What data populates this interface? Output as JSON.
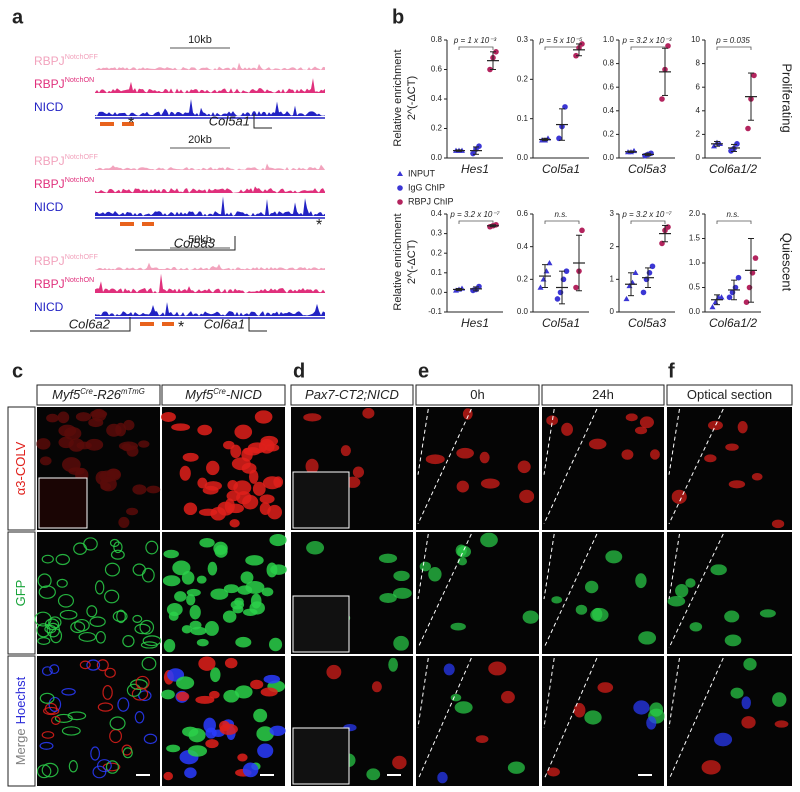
{
  "panel_labels": [
    "a",
    "b",
    "c",
    "d",
    "e",
    "f"
  ],
  "panel_a": [
    {
      "scale": "10kb",
      "tracks": [
        {
          "label": "RBPJ",
          "sup": "NotchOFF"
        },
        {
          "label": "RBPJ",
          "sup": "NotchON"
        },
        {
          "label": "NICD"
        }
      ],
      "genes": [
        "Col5a1"
      ],
      "asterisks": [
        "*"
      ]
    },
    {
      "scale": "20kb",
      "tracks": [
        {
          "label": "RBPJ",
          "sup": "NotchOFF"
        },
        {
          "label": "RBPJ",
          "sup": "NotchON"
        },
        {
          "label": "NICD"
        }
      ],
      "genes": [
        "Col5a3"
      ],
      "asterisks": [
        "*"
      ]
    },
    {
      "scale": "50kb",
      "tracks": [
        {
          "label": "RBPJ",
          "sup": "NotchOFF"
        },
        {
          "label": "RBPJ",
          "sup": "NotchON"
        },
        {
          "label": "NICD"
        }
      ],
      "genes": [
        "Col6a2",
        "Col6a1"
      ],
      "asterisks": [
        "*"
      ]
    }
  ],
  "panel_b_rows": [
    {
      "label": "Proliferating",
      "ylabel": [
        "Relative enrichment",
        "2^(-ΔCT)"
      ]
    },
    {
      "label": "Quiescent",
      "ylabel": [
        "Relative enrichment",
        "2^(-ΔCT)"
      ]
    }
  ],
  "chart_data": [
    {
      "type": "strip",
      "xlabel": "Hes1",
      "annotation": "p = 1 x 10⁻³",
      "ylim": [
        0,
        0.8
      ],
      "yticks": [
        {
          "value": 0,
          "label": "0.0"
        },
        0.2,
        0.4,
        0.6,
        0.8
      ],
      "series": [
        {
          "name": "INPUT",
          "marker": "triangle",
          "color": "#3b36d4",
          "values": [
            0.05,
            0.05,
            0.05
          ],
          "mean": 0.05,
          "sd": 0.005
        },
        {
          "name": "IgG ChIP",
          "marker": "circle",
          "color": "#3b36d4",
          "values": [
            0.03,
            0.06,
            0.08
          ],
          "mean": 0.05,
          "sd": 0.025
        },
        {
          "name": "RBPJ ChIP",
          "marker": "circle",
          "color": "#b3245e",
          "values": [
            0.6,
            0.68,
            0.72
          ],
          "mean": 0.66,
          "sd": 0.06
        }
      ]
    },
    {
      "type": "strip",
      "xlabel": "Col5a1",
      "annotation": "p = 5 x 10⁻⁵",
      "ylim": [
        0,
        0.3
      ],
      "yticks": [
        {
          "value": 0,
          "label": "0.0"
        },
        0.1,
        0.2,
        0.3
      ],
      "series": [
        {
          "marker": "triangle",
          "color": "#3b36d4",
          "values": [
            0.045,
            0.045,
            0.05
          ],
          "mean": 0.047,
          "sd": 0.003
        },
        {
          "marker": "circle",
          "color": "#3b36d4",
          "values": [
            0.05,
            0.08,
            0.13
          ],
          "mean": 0.085,
          "sd": 0.04
        },
        {
          "marker": "circle",
          "color": "#b3245e",
          "values": [
            0.26,
            0.28,
            0.29
          ],
          "mean": 0.275,
          "sd": 0.015
        }
      ]
    },
    {
      "type": "strip",
      "xlabel": "Col5a3",
      "annotation": "p = 3.2 x 10⁻³",
      "ylim": [
        0,
        1
      ],
      "yticks": [
        {
          "value": 0,
          "label": "0.0"
        },
        0.2,
        0.4,
        0.6,
        0.8,
        {
          "value": 1,
          "label": "1.0"
        }
      ],
      "series": [
        {
          "marker": "triangle",
          "color": "#3b36d4",
          "values": [
            0.05,
            0.05,
            0.06
          ],
          "mean": 0.053,
          "sd": 0.006
        },
        {
          "marker": "circle",
          "color": "#3b36d4",
          "values": [
            0.02,
            0.03,
            0.04
          ],
          "mean": 0.03,
          "sd": 0.01
        },
        {
          "marker": "circle",
          "color": "#b3245e",
          "values": [
            0.5,
            0.75,
            0.95
          ],
          "mean": 0.73,
          "sd": 0.2
        }
      ]
    },
    {
      "type": "strip",
      "xlabel": "Col6a1/2",
      "annotation": "p = 0.035",
      "ylim": [
        0,
        10
      ],
      "yticks": [
        0,
        2,
        4,
        6,
        8,
        10
      ],
      "series": [
        {
          "marker": "triangle",
          "color": "#3b36d4",
          "values": [
            1,
            1.3,
            1.2
          ],
          "mean": 1.2,
          "sd": 0.2
        },
        {
          "marker": "circle",
          "color": "#3b36d4",
          "values": [
            0.6,
            0.8,
            1.2
          ],
          "mean": 0.85,
          "sd": 0.3
        },
        {
          "marker": "circle",
          "color": "#b3245e",
          "values": [
            2.5,
            5,
            7
          ],
          "mean": 5.2,
          "sd": 2
        }
      ]
    },
    {
      "type": "strip",
      "xlabel": "Hes1",
      "annotation": "p = 3.2 x 10⁻⁷",
      "ylim": [
        -0.1,
        0.4
      ],
      "yticks": [
        -0.1,
        {
          "value": 0,
          "label": "0.0"
        },
        0.1,
        0.2,
        0.3,
        0.4
      ],
      "series": [
        {
          "marker": "triangle",
          "color": "#3b36d4",
          "values": [
            0.01,
            0.015,
            0.02
          ],
          "mean": 0.015,
          "sd": 0.005
        },
        {
          "marker": "circle",
          "color": "#3b36d4",
          "values": [
            0.01,
            0.015,
            0.03
          ],
          "mean": 0.018,
          "sd": 0.01
        },
        {
          "marker": "circle",
          "color": "#b3245e",
          "values": [
            0.335,
            0.34,
            0.345
          ],
          "mean": 0.34,
          "sd": 0.005
        }
      ]
    },
    {
      "type": "strip",
      "xlabel": "Col5a1",
      "annotation": "n.s.",
      "ylim": [
        0,
        0.6
      ],
      "yticks": [
        {
          "value": 0,
          "label": "0.0"
        },
        0.2,
        0.4,
        0.6
      ],
      "series": [
        {
          "marker": "triangle",
          "color": "#3b36d4",
          "values": [
            0.15,
            0.2,
            0.25,
            0.3
          ],
          "mean": 0.22,
          "sd": 0.07
        },
        {
          "marker": "circle",
          "color": "#3b36d4",
          "values": [
            0.08,
            0.12,
            0.2,
            0.25
          ],
          "mean": 0.15,
          "sd": 0.1
        },
        {
          "marker": "circle",
          "color": "#b3245e",
          "values": [
            0.15,
            0.25,
            0.5
          ],
          "mean": 0.3,
          "sd": 0.17
        }
      ]
    },
    {
      "type": "strip",
      "xlabel": "Col5a3",
      "annotation": "p = 3.2 x 10⁻⁷",
      "ylim": [
        0,
        3
      ],
      "yticks": [
        0,
        1,
        2,
        3
      ],
      "series": [
        {
          "marker": "triangle",
          "color": "#3b36d4",
          "values": [
            0.4,
            0.8,
            0.9,
            1.2
          ],
          "mean": 0.85,
          "sd": 0.35
        },
        {
          "marker": "circle",
          "color": "#3b36d4",
          "values": [
            0.6,
            1,
            1.2,
            1.4
          ],
          "mean": 1.05,
          "sd": 0.3
        },
        {
          "marker": "circle",
          "color": "#b3245e",
          "values": [
            2.1,
            2.5,
            2.6
          ],
          "mean": 2.4,
          "sd": 0.25
        }
      ]
    },
    {
      "type": "strip",
      "xlabel": "Col6a1/2",
      "annotation": "n.s.",
      "ylim": [
        0,
        2
      ],
      "yticks": [
        {
          "value": 0,
          "label": "0.0"
        },
        0.5,
        {
          "value": 1,
          "label": "1.0"
        },
        1.5,
        {
          "value": 2,
          "label": "2.0"
        }
      ],
      "series": [
        {
          "marker": "triangle",
          "color": "#3b36d4",
          "values": [
            0.1,
            0.2,
            0.3,
            0.3
          ],
          "mean": 0.25,
          "sd": 0.1
        },
        {
          "marker": "circle",
          "color": "#3b36d4",
          "values": [
            0.3,
            0.4,
            0.5,
            0.7
          ],
          "mean": 0.45,
          "sd": 0.2
        },
        {
          "marker": "circle",
          "color": "#b3245e",
          "values": [
            0.2,
            0.5,
            0.8,
            1.1
          ],
          "mean": 0.85,
          "sd": 0.65
        }
      ]
    }
  ],
  "panel_images": {
    "headers": [
      [
        "Myf5",
        "Cre",
        "-R26",
        "mTmG"
      ],
      [
        "Myf5",
        "Cre",
        "-NICD"
      ],
      [
        "Pax7-CT2;NICD"
      ],
      [
        "0h"
      ],
      [
        "24h"
      ],
      [
        "Optical section"
      ]
    ],
    "row_labels": [
      [
        "α3-COLV"
      ],
      [
        "GFP"
      ],
      [
        "Merge",
        "Hoechst"
      ]
    ],
    "row_label_colors": [
      [
        "#e0201b"
      ],
      [
        "#17a339"
      ],
      [
        "#808080",
        "#2b2bd8"
      ]
    ]
  }
}
